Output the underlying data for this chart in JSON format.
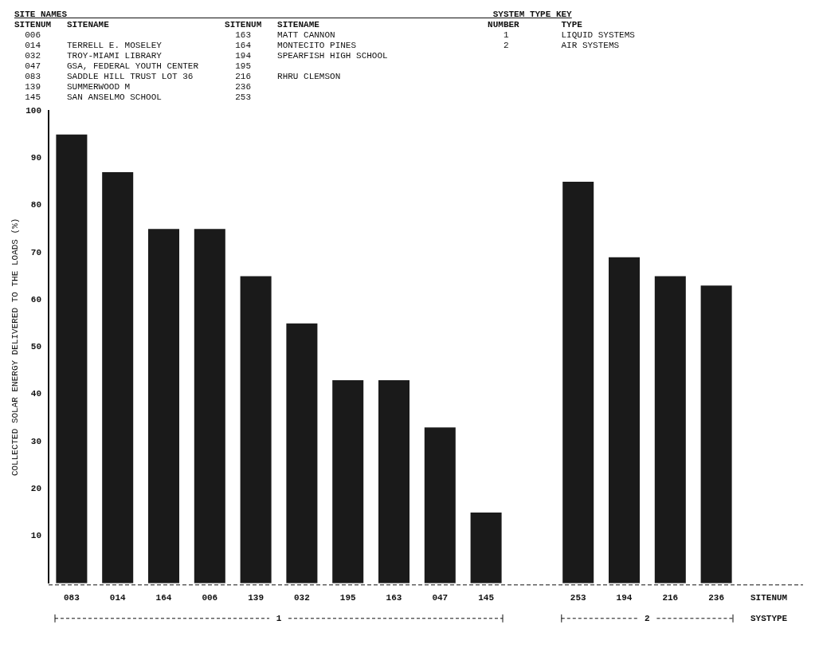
{
  "chart_data": {
    "type": "bar",
    "ylabel": "COLLECTED SOLAR ENERGY DELIVERED TO THE LOADS (%)",
    "xlabel": "SITENUM",
    "categories": [
      "083",
      "014",
      "164",
      "006",
      "139",
      "032",
      "195",
      "163",
      "047",
      "145",
      null,
      "253",
      "194",
      "216",
      "236"
    ],
    "values": [
      95,
      87,
      75,
      75,
      65,
      55,
      43,
      43,
      33,
      15,
      null,
      85,
      69,
      65,
      63
    ],
    "color": "#1a1a1a",
    "ylim": [
      0,
      100
    ],
    "yticks": [
      10,
      20,
      30,
      40,
      50,
      60,
      70,
      80,
      90,
      100
    ],
    "grid": false,
    "legend": false,
    "annotations": [
      "SITE NAMES                                                                                 SYSTEM TYPE KEY",
      "SITENUM   SITENAME                      SITENUM   SITENAME                                NUMBER        TYPE",
      "  006                                     163     MATT CANNON                                1          LIQUID SYSTEMS",
      "  014     TERRELL E. MOSELEY              164     MONTECITO PINES                            2          AIR SYSTEMS",
      "  032     TROY-MIAMI LIBRARY              194     SPEARFISH HIGH SCHOOL",
      "  047     GSA, FEDERAL YOUTH CENTER       195",
      "  083     SADDLE HILL TRUST LOT 36        216     RHRU CLEMSON",
      "  139     SUMMERWOOD M                    236",
      "  145     SAN ANSELMO SCHOOL              253",
      "SYSTYPE",
      "1",
      "2"
    ]
  }
}
